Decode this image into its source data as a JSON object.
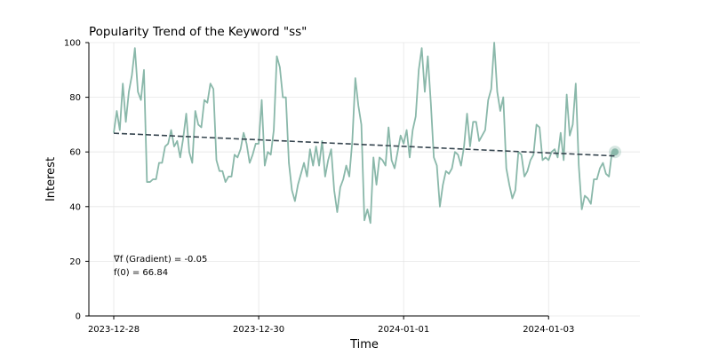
{
  "chart_data": {
    "type": "line",
    "title": "Popularity Trend of the Keyword \"ss\"",
    "xlabel": "Time",
    "ylabel": "Interest",
    "ylim": [
      0,
      100
    ],
    "yticks": [
      0,
      20,
      40,
      60,
      80,
      100
    ],
    "xticks": [
      "2023-12-28",
      "2023-12-30",
      "2024-01-01",
      "2024-01-03"
    ],
    "x_start": "2023-12-28 00:00",
    "x_step_hours": 1,
    "grid": true,
    "series": [
      {
        "color": "#8ab8aa",
        "values": [
          67,
          75,
          68,
          85,
          71,
          82,
          88,
          98,
          82,
          79,
          90,
          49,
          49,
          50,
          50,
          56,
          56,
          62,
          63,
          68,
          62,
          64,
          58,
          65,
          74,
          60,
          56,
          75,
          70,
          69,
          79,
          78,
          85,
          83,
          57,
          53,
          53,
          49,
          51,
          51,
          59,
          58,
          61,
          67,
          63,
          56,
          59,
          63,
          63,
          79,
          55,
          60,
          59,
          68,
          95,
          91,
          80,
          80,
          56,
          46,
          42,
          48,
          52,
          56,
          51,
          61,
          55,
          62,
          55,
          64,
          51,
          57,
          61,
          46,
          38,
          47,
          50,
          55,
          51,
          64,
          87,
          77,
          70,
          35,
          39,
          34,
          58,
          48,
          58,
          57,
          55,
          69,
          57,
          54,
          60,
          66,
          63,
          68,
          58,
          68,
          73,
          90,
          98,
          82,
          95,
          78,
          58,
          55,
          40,
          48,
          53,
          52,
          54,
          60,
          59,
          55,
          62,
          74,
          62,
          71,
          71,
          64,
          66,
          68,
          79,
          83,
          100,
          82,
          75,
          80,
          54,
          48,
          43,
          46,
          60,
          59,
          51,
          53,
          57,
          59,
          70,
          69,
          57,
          58,
          57,
          60,
          61,
          58,
          67,
          57,
          81,
          66,
          70,
          85,
          55,
          39,
          44,
          43,
          41,
          50,
          50,
          54,
          56,
          52,
          51,
          60,
          60
        ]
      }
    ],
    "trend": {
      "color": "#36454f",
      "start_value": 66.84,
      "slope_per_hour": -0.05
    },
    "annotations": [
      "∇f (Gradient) = -0.05",
      "f(0) = 66.84"
    ]
  }
}
